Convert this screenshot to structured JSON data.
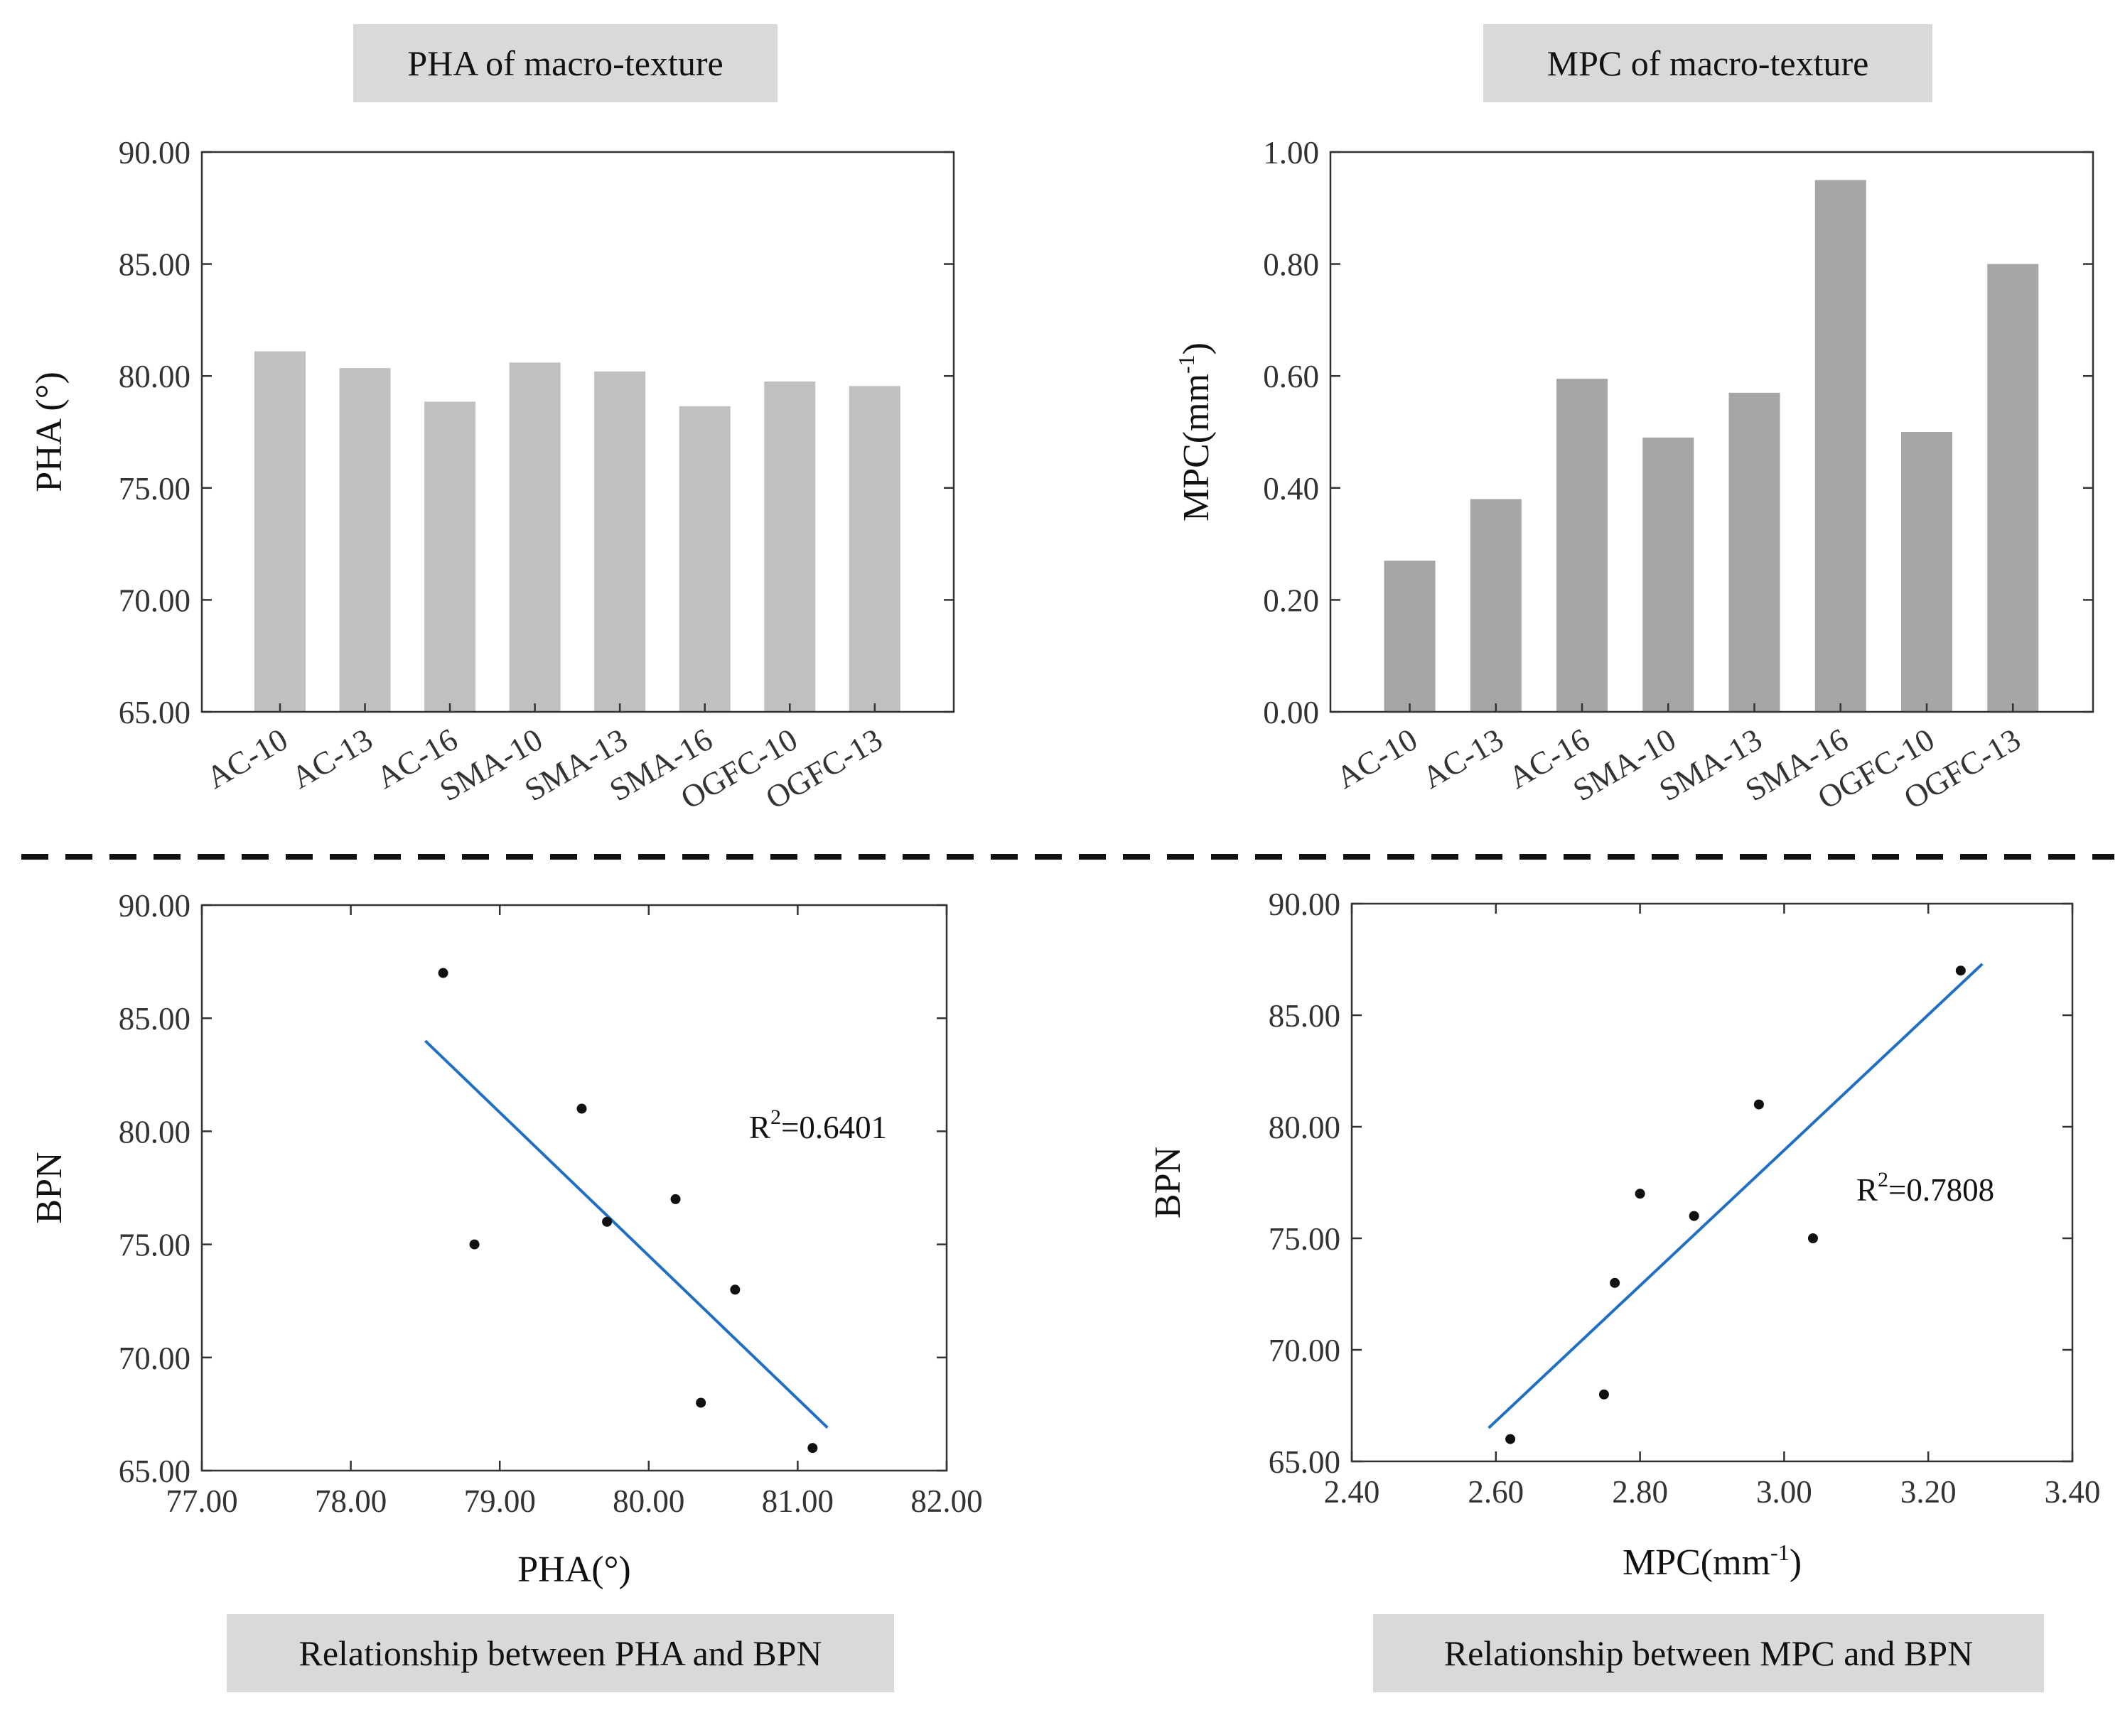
{
  "captions": {
    "top_left": "PHA of macro-texture",
    "top_right": "MPC of macro-texture",
    "bottom_left": "Relationship between PHA and BPN",
    "bottom_right": "Relationship between MPC and BPN"
  },
  "colors": {
    "pha_bar": "#c0c0c0",
    "mpc_bar": "#a6a6a6",
    "fit_line": "#1f6fc5",
    "caption_bg": "#d9d9d9"
  },
  "chart_data": [
    {
      "id": "pha-bar",
      "type": "bar",
      "title": "PHA of macro-texture",
      "xlabel": "",
      "ylabel": "PHA (°)",
      "ylim": [
        65,
        90
      ],
      "yticks": [
        "65.00",
        "70.00",
        "75.00",
        "80.00",
        "85.00",
        "90.00"
      ],
      "categories": [
        "AC-10",
        "AC-13",
        "AC-16",
        "SMA-10",
        "SMA-13",
        "SMA-16",
        "OGFC-10",
        "OGFC-13"
      ],
      "values": [
        81.1,
        80.35,
        78.85,
        80.6,
        80.2,
        78.65,
        79.75,
        79.55
      ]
    },
    {
      "id": "mpc-bar",
      "type": "bar",
      "title": "MPC of macro-texture",
      "xlabel": "",
      "ylabel_main": "MPC(mm",
      "ylabel_sup": "-1",
      "ylabel_end": ")",
      "ylim": [
        0,
        1
      ],
      "yticks": [
        "0.00",
        "0.20",
        "0.40",
        "0.60",
        "0.80",
        "1.00"
      ],
      "categories": [
        "AC-10",
        "AC-13",
        "AC-16",
        "SMA-10",
        "SMA-13",
        "SMA-16",
        "OGFC-10",
        "OGFC-13"
      ],
      "values": [
        0.27,
        0.38,
        0.595,
        0.49,
        0.57,
        0.95,
        0.5,
        0.8
      ]
    },
    {
      "id": "pha-bpn",
      "type": "scatter",
      "title": "Relationship between PHA and BPN",
      "xlabel": "PHA(°)",
      "ylabel": "BPN",
      "xlim": [
        77,
        82
      ],
      "ylim": [
        65,
        90
      ],
      "xticks": [
        "77.00",
        "78.00",
        "79.00",
        "80.00",
        "81.00",
        "82.00"
      ],
      "yticks": [
        "65.00",
        "70.00",
        "75.00",
        "80.00",
        "85.00",
        "90.00"
      ],
      "points": [
        {
          "x": 78.62,
          "y": 87
        },
        {
          "x": 78.83,
          "y": 75
        },
        {
          "x": 79.55,
          "y": 81
        },
        {
          "x": 79.72,
          "y": 76
        },
        {
          "x": 80.18,
          "y": 77
        },
        {
          "x": 80.35,
          "y": 68
        },
        {
          "x": 80.58,
          "y": 73
        },
        {
          "x": 81.1,
          "y": 66
        }
      ],
      "fit": {
        "x": [
          78.5,
          81.2
        ],
        "y": [
          84.0,
          66.9
        ]
      },
      "r2_prefix": "R",
      "r2_sup": "2",
      "r2_value": "=0.6401"
    },
    {
      "id": "mpc-bpn",
      "type": "scatter",
      "title": "Relationship between MPC and BPN",
      "xlabel_main": "MPC(mm",
      "xlabel_sup": "-1",
      "xlabel_end": ")",
      "ylabel": "BPN",
      "xlim": [
        2.4,
        3.4
      ],
      "ylim": [
        65,
        90
      ],
      "xticks": [
        "2.40",
        "2.60",
        "2.80",
        "3.00",
        "3.20",
        "3.40"
      ],
      "yticks": [
        "65.00",
        "70.00",
        "75.00",
        "80.00",
        "85.00",
        "90.00"
      ],
      "points": [
        {
          "x": 2.62,
          "y": 66
        },
        {
          "x": 2.75,
          "y": 68
        },
        {
          "x": 2.765,
          "y": 73
        },
        {
          "x": 2.8,
          "y": 77
        },
        {
          "x": 2.875,
          "y": 76
        },
        {
          "x": 2.965,
          "y": 81
        },
        {
          "x": 3.04,
          "y": 75
        },
        {
          "x": 3.245,
          "y": 87
        }
      ],
      "fit": {
        "x": [
          2.59,
          3.275
        ],
        "y": [
          66.5,
          87.3
        ]
      },
      "r2_prefix": "R",
      "r2_sup": "2",
      "r2_value": "=0.7808"
    }
  ]
}
